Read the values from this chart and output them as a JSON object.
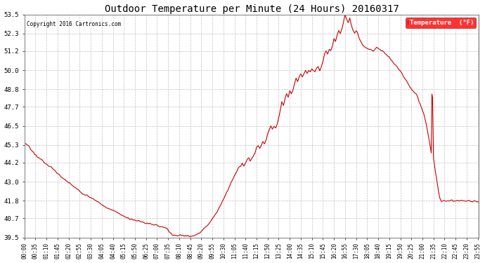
{
  "title": "Outdoor Temperature per Minute (24 Hours) 20160317",
  "copyright": "Copyright 2016 Cartronics.com",
  "legend_label": "Temperature  (°F)",
  "line_color": "#cc0000",
  "bg_color": "#ffffff",
  "grid_color": "#bbbbbb",
  "ylim": [
    39.5,
    53.5
  ],
  "yticks": [
    39.5,
    40.7,
    41.8,
    43.0,
    44.2,
    45.3,
    46.5,
    47.7,
    48.8,
    50.0,
    51.2,
    52.3,
    53.5
  ],
  "x_labels": [
    "00:00",
    "00:35",
    "01:10",
    "01:45",
    "02:20",
    "02:55",
    "03:30",
    "04:05",
    "04:40",
    "05:15",
    "05:50",
    "06:25",
    "07:00",
    "07:35",
    "08:10",
    "08:45",
    "09:20",
    "09:55",
    "10:30",
    "11:05",
    "11:40",
    "12:15",
    "12:50",
    "13:25",
    "14:00",
    "14:35",
    "15:10",
    "15:45",
    "16:20",
    "16:55",
    "17:30",
    "18:05",
    "18:40",
    "19:15",
    "19:50",
    "20:25",
    "21:00",
    "21:35",
    "22:10",
    "22:45",
    "23:20",
    "23:55"
  ],
  "waypoints": [
    [
      0,
      45.3
    ],
    [
      5,
      45.35
    ],
    [
      15,
      45.2
    ],
    [
      25,
      44.9
    ],
    [
      40,
      44.6
    ],
    [
      55,
      44.4
    ],
    [
      70,
      44.1
    ],
    [
      85,
      43.9
    ],
    [
      100,
      43.6
    ],
    [
      115,
      43.3
    ],
    [
      130,
      43.1
    ],
    [
      150,
      42.8
    ],
    [
      170,
      42.5
    ],
    [
      190,
      42.2
    ],
    [
      210,
      42.0
    ],
    [
      230,
      41.8
    ],
    [
      250,
      41.5
    ],
    [
      270,
      41.3
    ],
    [
      290,
      41.1
    ],
    [
      310,
      40.9
    ],
    [
      330,
      40.7
    ],
    [
      350,
      40.6
    ],
    [
      370,
      40.5
    ],
    [
      390,
      40.4
    ],
    [
      410,
      40.3
    ],
    [
      430,
      40.2
    ],
    [
      450,
      40.1
    ],
    [
      455,
      39.95
    ],
    [
      460,
      39.85
    ],
    [
      465,
      39.75
    ],
    [
      470,
      39.68
    ],
    [
      475,
      39.62
    ],
    [
      455,
      39.95
    ],
    [
      480,
      39.6
    ],
    [
      490,
      39.62
    ],
    [
      500,
      39.65
    ],
    [
      510,
      39.62
    ],
    [
      520,
      39.6
    ],
    [
      525,
      39.58
    ],
    [
      530,
      39.6
    ],
    [
      535,
      39.62
    ],
    [
      540,
      39.65
    ],
    [
      545,
      39.7
    ],
    [
      555,
      39.8
    ],
    [
      565,
      40.0
    ],
    [
      575,
      40.2
    ],
    [
      585,
      40.4
    ],
    [
      595,
      40.7
    ],
    [
      605,
      41.0
    ],
    [
      615,
      41.3
    ],
    [
      625,
      41.7
    ],
    [
      635,
      42.1
    ],
    [
      645,
      42.5
    ],
    [
      655,
      43.0
    ],
    [
      665,
      43.4
    ],
    [
      675,
      43.8
    ],
    [
      685,
      44.0
    ],
    [
      690,
      44.15
    ],
    [
      695,
      44.0
    ],
    [
      700,
      44.2
    ],
    [
      710,
      44.5
    ],
    [
      715,
      44.3
    ],
    [
      720,
      44.5
    ],
    [
      730,
      44.8
    ],
    [
      735,
      45.2
    ],
    [
      740,
      45.3
    ],
    [
      745,
      45.1
    ],
    [
      750,
      45.3
    ],
    [
      755,
      45.5
    ],
    [
      760,
      45.4
    ],
    [
      765,
      45.6
    ],
    [
      770,
      46.0
    ],
    [
      775,
      46.3
    ],
    [
      780,
      46.5
    ],
    [
      785,
      46.3
    ],
    [
      790,
      46.5
    ],
    [
      795,
      46.4
    ],
    [
      800,
      46.6
    ],
    [
      805,
      47.0
    ],
    [
      810,
      47.5
    ],
    [
      815,
      48.0
    ],
    [
      820,
      47.8
    ],
    [
      825,
      48.2
    ],
    [
      830,
      48.5
    ],
    [
      835,
      48.3
    ],
    [
      840,
      48.7
    ],
    [
      845,
      48.5
    ],
    [
      850,
      48.8
    ],
    [
      855,
      49.2
    ],
    [
      860,
      49.5
    ],
    [
      865,
      49.3
    ],
    [
      870,
      49.6
    ],
    [
      875,
      49.8
    ],
    [
      880,
      49.6
    ],
    [
      885,
      49.8
    ],
    [
      890,
      50.0
    ],
    [
      895,
      49.8
    ],
    [
      900,
      50.0
    ],
    [
      905,
      49.9
    ],
    [
      910,
      50.1
    ],
    [
      915,
      50.0
    ],
    [
      920,
      49.9
    ],
    [
      925,
      50.1
    ],
    [
      930,
      50.2
    ],
    [
      935,
      50.0
    ],
    [
      940,
      50.2
    ],
    [
      945,
      50.5
    ],
    [
      950,
      51.0
    ],
    [
      955,
      51.2
    ],
    [
      960,
      51.0
    ],
    [
      965,
      51.3
    ],
    [
      970,
      51.2
    ],
    [
      975,
      51.5
    ],
    [
      980,
      52.0
    ],
    [
      985,
      51.8
    ],
    [
      990,
      52.2
    ],
    [
      995,
      52.5
    ],
    [
      1000,
      52.3
    ],
    [
      1005,
      52.6
    ],
    [
      1010,
      53.0
    ],
    [
      1015,
      53.5
    ],
    [
      1020,
      53.2
    ],
    [
      1025,
      53.0
    ],
    [
      1030,
      53.3
    ],
    [
      1035,
      52.8
    ],
    [
      1040,
      52.5
    ],
    [
      1045,
      52.3
    ],
    [
      1050,
      52.5
    ],
    [
      1055,
      52.3
    ],
    [
      1060,
      52.0
    ],
    [
      1065,
      51.8
    ],
    [
      1075,
      51.5
    ],
    [
      1085,
      51.4
    ],
    [
      1095,
      51.3
    ],
    [
      1105,
      51.2
    ],
    [
      1115,
      51.4
    ],
    [
      1125,
      51.3
    ],
    [
      1135,
      51.2
    ],
    [
      1145,
      51.0
    ],
    [
      1155,
      50.8
    ],
    [
      1165,
      50.5
    ],
    [
      1180,
      50.2
    ],
    [
      1195,
      49.8
    ],
    [
      1210,
      49.3
    ],
    [
      1225,
      48.8
    ],
    [
      1235,
      48.6
    ],
    [
      1240,
      48.5
    ],
    [
      1245,
      48.3
    ],
    [
      1250,
      48.0
    ],
    [
      1255,
      47.8
    ],
    [
      1260,
      47.5
    ],
    [
      1265,
      47.2
    ],
    [
      1270,
      46.8
    ],
    [
      1275,
      46.3
    ],
    [
      1280,
      45.8
    ],
    [
      1285,
      45.2
    ],
    [
      1288,
      44.8
    ],
    [
      1290,
      48.5
    ],
    [
      1292,
      48.3
    ],
    [
      1295,
      44.5
    ],
    [
      1300,
      43.8
    ],
    [
      1305,
      43.2
    ],
    [
      1310,
      42.5
    ],
    [
      1315,
      42.0
    ],
    [
      1320,
      41.8
    ],
    [
      1330,
      41.8
    ],
    [
      1350,
      41.8
    ],
    [
      1370,
      41.8
    ],
    [
      1390,
      41.8
    ],
    [
      1410,
      41.8
    ],
    [
      1430,
      41.8
    ],
    [
      1439,
      41.7
    ]
  ]
}
